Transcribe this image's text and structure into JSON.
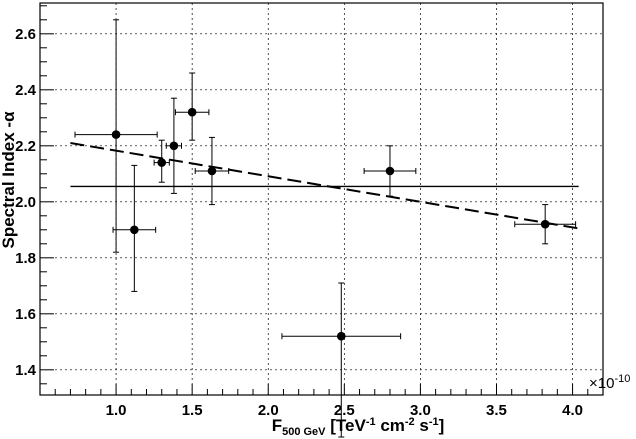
{
  "chart_data": {
    "type": "scatter",
    "xlabel_parts": {
      "main": "F",
      "sub": "500 GeV",
      "bracket_open": " [TeV",
      "sup1": "-1",
      "cm": " cm",
      "sup2": "-2",
      "s": " s",
      "sup3": "-1",
      "bracket_close": "]"
    },
    "ylabel": "Spectral Index -α",
    "x_multiplier": "×10",
    "x_multiplier_exp": "-10",
    "xlim": [
      0.5,
      4.2
    ],
    "ylim": [
      1.31,
      2.71
    ],
    "x_ticks": [
      1.0,
      1.5,
      2.0,
      2.5,
      3.0,
      3.5,
      4.0
    ],
    "x_tick_labels": [
      "1.0",
      "1.5",
      "2.0",
      "2.5",
      "3.0",
      "3.5",
      "4.0"
    ],
    "y_ticks": [
      1.4,
      1.6,
      1.8,
      2.0,
      2.2,
      2.4,
      2.6
    ],
    "y_tick_labels": [
      "1.4",
      "1.6",
      "1.8",
      "2.0",
      "2.2",
      "2.4",
      "2.6"
    ],
    "grid": true,
    "points": [
      {
        "x": 1.0,
        "y": 2.24,
        "xerr": [
          0.27,
          0.27
        ],
        "yerr": [
          0.42,
          0.41
        ]
      },
      {
        "x": 1.12,
        "y": 1.9,
        "xerr": [
          0.14,
          0.14
        ],
        "yerr": [
          0.22,
          0.23
        ]
      },
      {
        "x": 1.3,
        "y": 2.14,
        "xerr": [
          0.05,
          0.05
        ],
        "yerr": [
          0.07,
          0.08
        ]
      },
      {
        "x": 1.38,
        "y": 2.2,
        "xerr": [
          0.05,
          0.05
        ],
        "yerr": [
          0.17,
          0.17
        ]
      },
      {
        "x": 1.5,
        "y": 2.32,
        "xerr": [
          0.11,
          0.11
        ],
        "yerr": [
          0.1,
          0.14
        ]
      },
      {
        "x": 1.63,
        "y": 2.11,
        "xerr": [
          0.11,
          0.11
        ],
        "yerr": [
          0.12,
          0.12
        ]
      },
      {
        "x": 2.48,
        "y": 1.52,
        "xerr": [
          0.39,
          0.39
        ],
        "yerr": [
          0.36,
          0.19
        ]
      },
      {
        "x": 2.8,
        "y": 2.11,
        "xerr": [
          0.17,
          0.17
        ],
        "yerr": [
          0.09,
          0.09
        ]
      },
      {
        "x": 3.82,
        "y": 1.92,
        "xerr": [
          0.2,
          0.2
        ],
        "yerr": [
          0.07,
          0.07
        ]
      }
    ],
    "constant_fit": {
      "y": 2.055,
      "x_range": [
        0.7,
        4.04
      ]
    },
    "linear_fit": {
      "x_range": [
        0.7,
        4.04
      ],
      "y_range": [
        2.21,
        1.905
      ],
      "style": "dashed"
    }
  }
}
